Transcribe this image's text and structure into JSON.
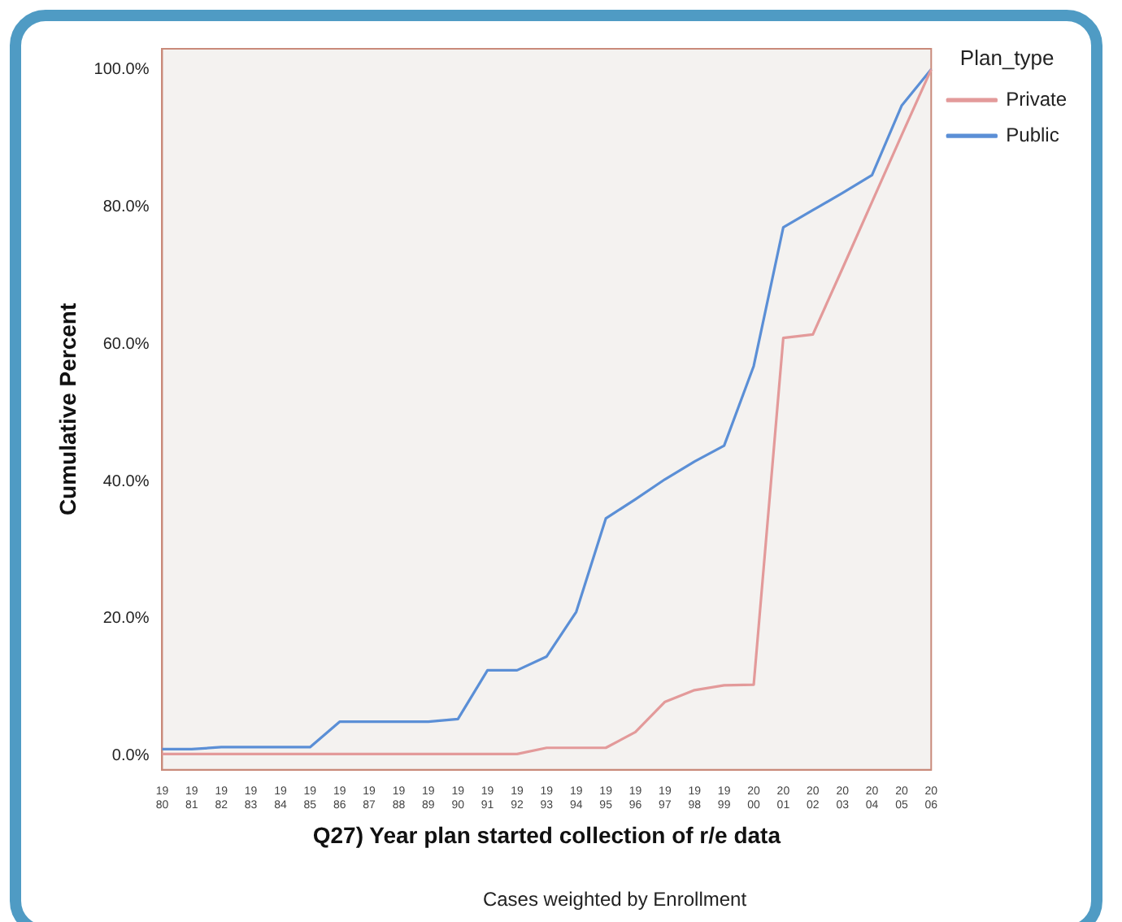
{
  "chart_data": {
    "type": "line",
    "xlabel": "Q27) Year plan started collection of r/e data",
    "ylabel": "Cumulative Percent",
    "legend_title": "Plan_type",
    "annotations": [
      "Cases weighted by Enrollment"
    ],
    "categories": [
      "1980",
      "1981",
      "1982",
      "1983",
      "1984",
      "1985",
      "1986",
      "1987",
      "1988",
      "1989",
      "1990",
      "1991",
      "1992",
      "1993",
      "1994",
      "1995",
      "1996",
      "1997",
      "1998",
      "1999",
      "2000",
      "2001",
      "2002",
      "2003",
      "2004",
      "2005",
      "2006"
    ],
    "series": [
      {
        "name": "Private",
        "color": "#e39a9a",
        "values": [
          0.3,
          0.3,
          0.3,
          0.3,
          0.3,
          0.3,
          0.3,
          0.3,
          0.3,
          0.3,
          0.3,
          0.3,
          0.3,
          1.2,
          1.2,
          1.2,
          3.5,
          7.9,
          9.6,
          10.3,
          10.4,
          60.9,
          61.4,
          71,
          80.7,
          90.4,
          100
        ]
      },
      {
        "name": "Public",
        "color": "#5b8fd6",
        "values": [
          1.0,
          1.0,
          1.3,
          1.3,
          1.3,
          1.3,
          5.0,
          5.0,
          5.0,
          5.0,
          5.4,
          12.5,
          12.5,
          14.5,
          21,
          34.6,
          37.4,
          40.3,
          42.9,
          45.2,
          56.8,
          77.0,
          79.5,
          82.0,
          84.6,
          94.7,
          100
        ]
      }
    ],
    "ylim": [
      -2,
      103
    ],
    "yticks": [
      {
        "value": 0,
        "label": "0.0%"
      },
      {
        "value": 20,
        "label": "20.0%"
      },
      {
        "value": 40,
        "label": "40.0%"
      },
      {
        "value": 60,
        "label": "60.0%"
      },
      {
        "value": 80,
        "label": "80.0%"
      },
      {
        "value": 100,
        "label": "100.0%"
      }
    ],
    "grid": false,
    "legend": "top right",
    "marker": "none",
    "line_style": "solid"
  }
}
